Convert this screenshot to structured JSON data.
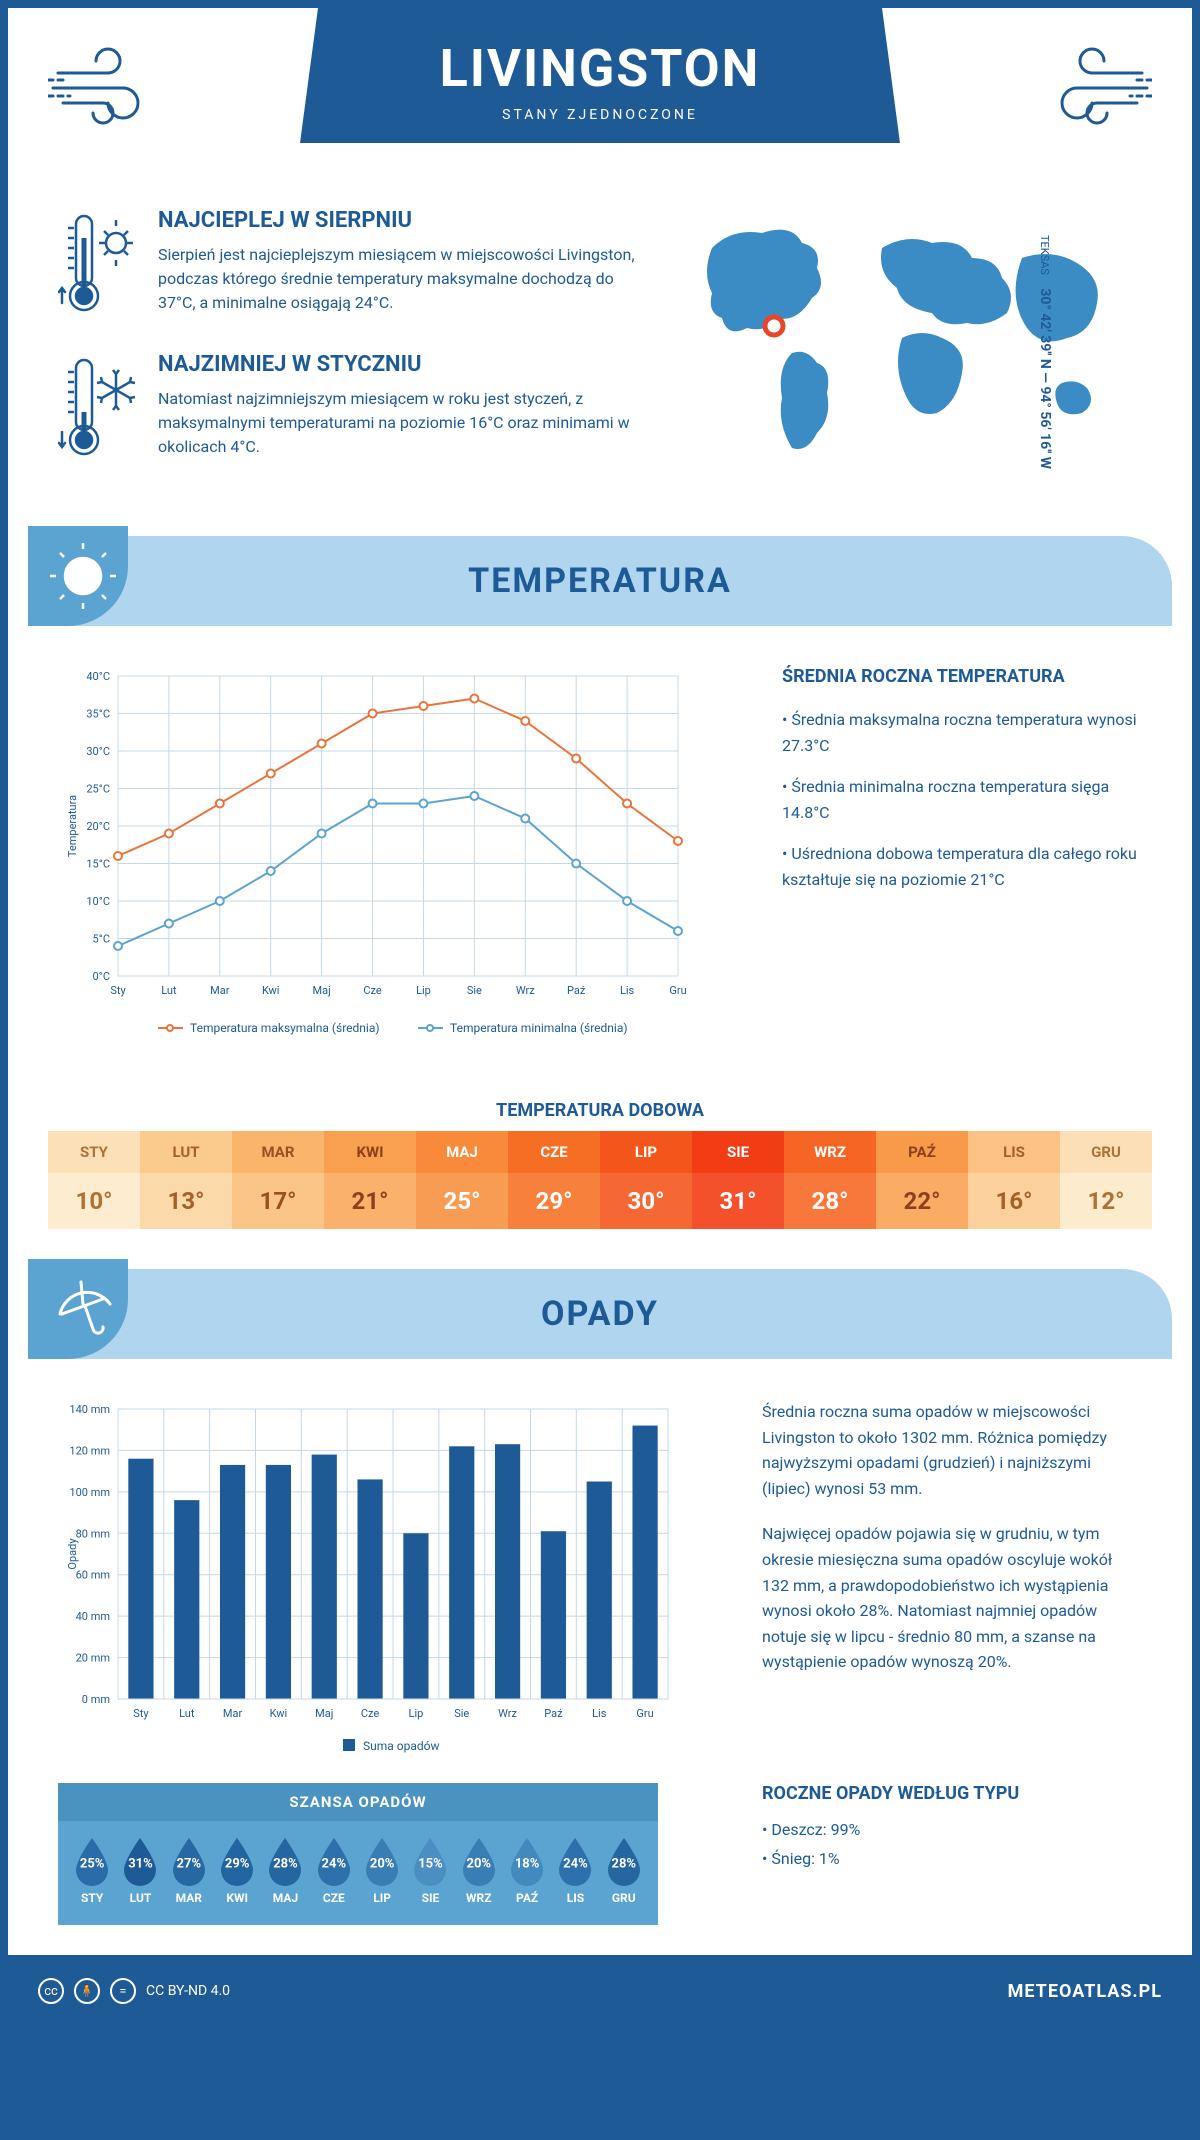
{
  "header": {
    "city": "LIVINGSTON",
    "country": "STANY ZJEDNOCZONE"
  },
  "coords": {
    "state": "TEKSAS",
    "lat": "30° 42' 39'' N",
    "lon": "94° 56' 16'' W"
  },
  "facts": {
    "hot": {
      "title": "NAJCIEPLEJ W SIERPNIU",
      "text": "Sierpień jest najcieplejszym miesiącem w miejscowości Livingston, podczas którego średnie temperatury maksymalne dochodzą do 37°C, a minimalne osiągają 24°C."
    },
    "cold": {
      "title": "NAJZIMNIEJ W STYCZNIU",
      "text": "Natomiast najzimniejszym miesiącem w roku jest styczeń, z maksymalnymi temperaturami na poziomie 16°C oraz minimami w okolicach 4°C."
    }
  },
  "months": [
    "Sty",
    "Lut",
    "Mar",
    "Kwi",
    "Maj",
    "Cze",
    "Lip",
    "Sie",
    "Wrz",
    "Paź",
    "Lis",
    "Gru"
  ],
  "months_upper": [
    "STY",
    "LUT",
    "MAR",
    "KWI",
    "MAJ",
    "CZE",
    "LIP",
    "SIE",
    "WRZ",
    "PAŹ",
    "LIS",
    "GRU"
  ],
  "temperature": {
    "section_title": "TEMPERATURA",
    "chart": {
      "type": "line",
      "ylabel": "Temperatura",
      "ylim": [
        0,
        40
      ],
      "ytick_step": 5,
      "ytick_suffix": "°C",
      "series": [
        {
          "name": "Temperatura maksymalna (średnia)",
          "color": "#e8743b",
          "values": [
            16,
            19,
            23,
            27,
            31,
            35,
            36,
            37,
            34,
            29,
            23,
            18
          ]
        },
        {
          "name": "Temperatura minimalna (średnia)",
          "color": "#5ba3d0",
          "values": [
            4,
            7,
            10,
            14,
            19,
            23,
            23,
            24,
            21,
            15,
            10,
            6
          ]
        }
      ],
      "grid_color": "#c5d8e8",
      "marker": "circle",
      "marker_size": 4,
      "line_width": 2
    },
    "info_title": "ŚREDNIA ROCZNA TEMPERATURA",
    "bullets": [
      "• Średnia maksymalna roczna temperatura wynosi 27.3°C",
      "• Średnia minimalna roczna temperatura sięga 14.8°C",
      "• Uśredniona dobowa temperatura dla całego roku kształtuje się na poziomie 21°C"
    ],
    "daily_title": "TEMPERATURA DOBOWA",
    "daily_values": [
      "10°",
      "13°",
      "17°",
      "21°",
      "25°",
      "29°",
      "30°",
      "31°",
      "28°",
      "22°",
      "16°",
      "12°"
    ],
    "daily_head_colors": [
      "#fce0b8",
      "#fbcb8e",
      "#fab56d",
      "#f9a050",
      "#f88a39",
      "#f56e23",
      "#f4551a",
      "#f23c14",
      "#f66523",
      "#f99a4a",
      "#fbc283",
      "#fcdfb6"
    ],
    "daily_val_colors": [
      "#fdeccf",
      "#fcd9a8",
      "#fbc587",
      "#fab16b",
      "#f99c53",
      "#f7803d",
      "#f66833",
      "#f4502b",
      "#f8783c",
      "#faac65",
      "#fcd19d",
      "#fdebce"
    ],
    "daily_text_colors": [
      "#b07030",
      "#a56028",
      "#995022",
      "#8d401c",
      "#ffffff",
      "#ffffff",
      "#ffffff",
      "#ffffff",
      "#ffffff",
      "#8d401c",
      "#a56028",
      "#b07030"
    ]
  },
  "precip": {
    "section_title": "OPADY",
    "chart": {
      "type": "bar",
      "ylabel": "Opady",
      "ylim": [
        0,
        140
      ],
      "ytick_step": 20,
      "ytick_suffix": " mm",
      "values": [
        116,
        96,
        113,
        113,
        118,
        106,
        80,
        122,
        123,
        81,
        105,
        132
      ],
      "bar_color": "#1e5a96",
      "legend": "Suma opadów",
      "grid_color": "#c5d8e8",
      "bar_width": 0.55
    },
    "paragraphs": [
      "Średnia roczna suma opadów w miejscowości Livingston to około 1302 mm. Różnica pomiędzy najwyższymi opadami (grudzień) i najniższymi (lipiec) wynosi 53 mm.",
      "Najwięcej opadów pojawia się w grudniu, w tym okresie miesięczna suma opadów oscyluje wokół 132 mm, a prawdopodobieństwo ich wystąpienia wynosi około 28%. Natomiast najmniej opadów notuje się w lipcu - średnio 80 mm, a szanse na wystąpienie opadów wynoszą 20%."
    ],
    "chance_title": "SZANSA OPADÓW",
    "chance_values": [
      "25%",
      "31%",
      "27%",
      "29%",
      "28%",
      "24%",
      "20%",
      "15%",
      "20%",
      "18%",
      "24%",
      "28%"
    ],
    "drop_colors": [
      "#2a6ca8",
      "#1e5a96",
      "#2768a3",
      "#2264a0",
      "#2566a1",
      "#2e70ab",
      "#397db5",
      "#4a8ec2",
      "#397db5",
      "#418abd",
      "#2e70ab",
      "#2566a1"
    ],
    "type_title": "ROCZNE OPADY WEDŁUG TYPU",
    "type_bullets": [
      "• Deszcz: 99%",
      "• Śnieg: 1%"
    ]
  },
  "footer": {
    "license": "CC BY-ND 4.0",
    "site": "METEOATLAS.PL"
  },
  "colors": {
    "primary": "#1e5a96",
    "light": "#b0d5ef",
    "mid": "#5ba3d0"
  }
}
